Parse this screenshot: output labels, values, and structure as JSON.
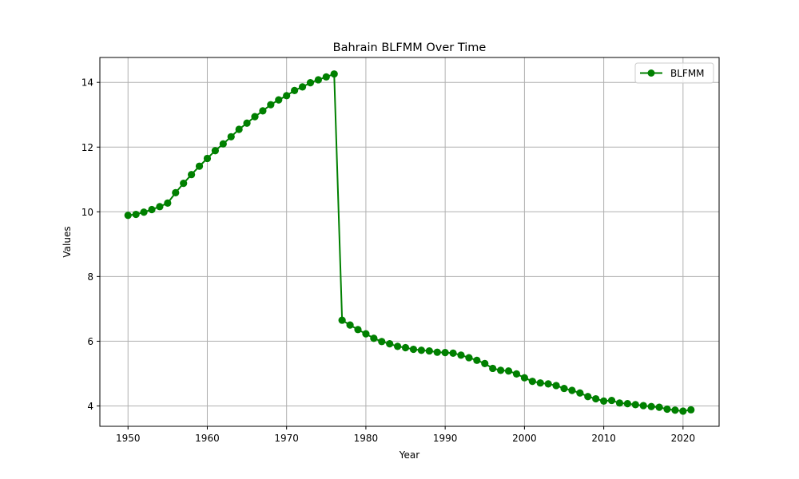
{
  "chart_data": {
    "type": "line",
    "title": "Bahrain BLFMM Over Time",
    "xlabel": "Year",
    "ylabel": "Values",
    "xlim": [
      1946.45,
      2024.55
    ],
    "ylim": [
      3.37,
      14.77
    ],
    "xticks": [
      1950,
      1960,
      1970,
      1980,
      1990,
      2000,
      2010,
      2020
    ],
    "yticks": [
      4,
      6,
      8,
      10,
      12,
      14
    ],
    "grid": true,
    "legend_position": "top-right",
    "series": [
      {
        "name": "BLFMM",
        "color": "#008000",
        "marker": "circle",
        "x": [
          1950,
          1951,
          1952,
          1953,
          1954,
          1955,
          1956,
          1957,
          1958,
          1959,
          1960,
          1961,
          1962,
          1963,
          1964,
          1965,
          1966,
          1967,
          1968,
          1969,
          1970,
          1971,
          1972,
          1973,
          1974,
          1975,
          1976,
          1977,
          1978,
          1979,
          1980,
          1981,
          1982,
          1983,
          1984,
          1985,
          1986,
          1987,
          1988,
          1989,
          1990,
          1991,
          1992,
          1993,
          1994,
          1995,
          1996,
          1997,
          1998,
          1999,
          2000,
          2001,
          2002,
          2003,
          2004,
          2005,
          2006,
          2007,
          2008,
          2009,
          2010,
          2011,
          2012,
          2013,
          2014,
          2015,
          2016,
          2017,
          2018,
          2019,
          2020,
          2021
        ],
        "values": [
          9.89,
          9.92,
          9.99,
          10.07,
          10.16,
          10.27,
          10.59,
          10.88,
          11.15,
          11.41,
          11.65,
          11.89,
          12.1,
          12.32,
          12.55,
          12.74,
          12.94,
          13.12,
          13.31,
          13.46,
          13.59,
          13.75,
          13.86,
          13.99,
          14.08,
          14.17,
          14.26,
          6.65,
          6.5,
          6.36,
          6.23,
          6.09,
          5.99,
          5.92,
          5.84,
          5.8,
          5.75,
          5.72,
          5.7,
          5.66,
          5.65,
          5.63,
          5.57,
          5.49,
          5.41,
          5.31,
          5.16,
          5.1,
          5.08,
          4.99,
          4.87,
          4.76,
          4.71,
          4.68,
          4.63,
          4.54,
          4.48,
          4.4,
          4.29,
          4.22,
          4.15,
          4.17,
          4.09,
          4.07,
          4.04,
          4.01,
          3.98,
          3.96,
          3.9,
          3.87,
          3.84,
          3.88
        ]
      }
    ]
  }
}
